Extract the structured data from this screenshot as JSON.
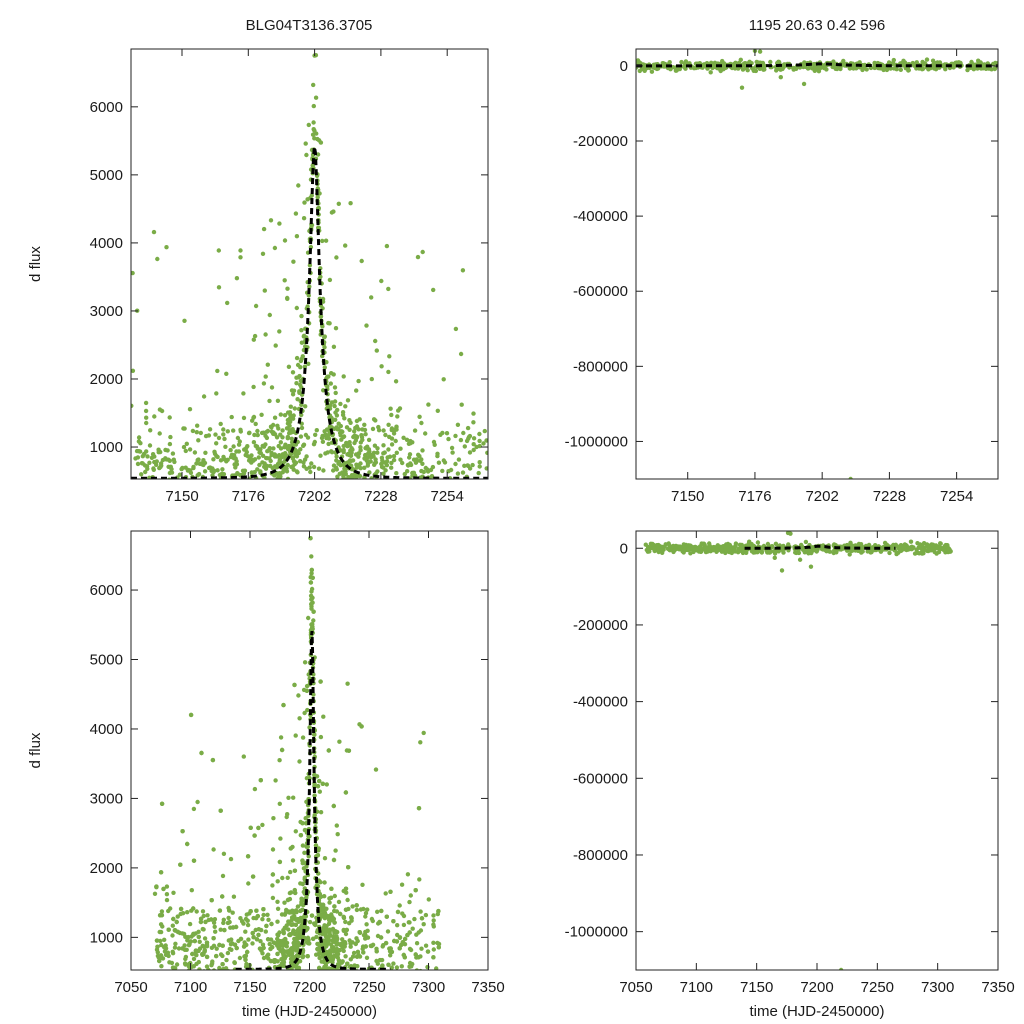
{
  "figure": {
    "title_left": "BLG04T3136.3705",
    "title_right": "1195  20.63  0.42  596",
    "point_color": "#7aac47",
    "model_color": "#000000"
  },
  "chart_data": [
    {
      "id": "top_left",
      "type": "scatter",
      "xlabel": "",
      "ylabel": "d flux",
      "xlim": [
        7130,
        7270
      ],
      "ylim": [
        530,
        6850
      ],
      "xticks": [
        7150,
        7176,
        7202,
        7228,
        7254
      ],
      "yticks": [
        1000,
        2000,
        3000,
        4000,
        5000,
        6000
      ],
      "series": [
        {
          "name": "observations",
          "kind": "scatter-cloud",
          "distribution": {
            "peak_x": 7202,
            "width": 9,
            "baseline": 600,
            "amplitude": 5200,
            "x_range": [
              7130,
              7270
            ],
            "count": 1300,
            "scatter": 450
          }
        },
        {
          "name": "model",
          "kind": "line-dashed",
          "model": {
            "t0": 7202,
            "tE": 9,
            "baseline": 540,
            "peak": 5430
          }
        }
      ]
    },
    {
      "id": "top_right",
      "type": "scatter",
      "xlabel": "",
      "ylabel": "",
      "xlim": [
        7130,
        7270
      ],
      "ylim": [
        -1100000,
        45000
      ],
      "xticks": [
        7150,
        7176,
        7202,
        7228,
        7254
      ],
      "yticks": [
        0,
        -200000,
        -400000,
        -600000,
        -800000,
        -1000000
      ],
      "yticklabels": [
        "0",
        "-200000",
        "-400000",
        "-600000",
        "-800000",
        "-1000000"
      ],
      "series": [
        {
          "name": "observations",
          "kind": "scatter-band",
          "distribution": {
            "x_range": [
              7130,
              7270
            ],
            "center": 0,
            "spread": 6000,
            "count": 500
          }
        },
        {
          "name": "outliers",
          "kind": "scatter-points",
          "x": [
            7171,
            7176,
            7195,
            7178,
            7213,
            7186
          ],
          "y": [
            -58000,
            40000,
            -48000,
            38000,
            -1100000,
            -30000
          ]
        },
        {
          "name": "model",
          "kind": "line-dashed",
          "model": {
            "t0": 7202,
            "tE": 30,
            "baseline": 0,
            "peak": 5400
          }
        }
      ]
    },
    {
      "id": "bottom_left",
      "type": "scatter",
      "xlabel": "time (HJD-2450000)",
      "ylabel": "d flux",
      "xlim": [
        7050,
        7350
      ],
      "ylim": [
        530,
        6850
      ],
      "xticks": [
        7050,
        7100,
        7150,
        7200,
        7250,
        7300,
        7350
      ],
      "yticks": [
        1000,
        2000,
        3000,
        4000,
        5000,
        6000
      ],
      "series": [
        {
          "name": "observations",
          "kind": "scatter-cloud",
          "distribution": {
            "peak_x": 7202,
            "width": 8,
            "baseline": 700,
            "amplitude": 5300,
            "x_range": [
              7070,
              7310
            ],
            "count": 1900,
            "scatter": 500
          }
        },
        {
          "name": "model",
          "kind": "line-dashed",
          "model": {
            "t0": 7202,
            "tE": 8,
            "baseline": 540,
            "peak": 5430,
            "x_range": [
              7138,
              7268
            ]
          }
        }
      ]
    },
    {
      "id": "bottom_right",
      "type": "scatter",
      "xlabel": "time (HJD-2450000)",
      "ylabel": "",
      "xlim": [
        7050,
        7350
      ],
      "ylim": [
        -1100000,
        45000
      ],
      "xticks": [
        7050,
        7100,
        7150,
        7200,
        7250,
        7300,
        7350
      ],
      "yticks": [
        0,
        -200000,
        -400000,
        -600000,
        -800000,
        -1000000
      ],
      "yticklabels": [
        "0",
        "-200000",
        "-400000",
        "-600000",
        "-800000",
        "-1000000"
      ],
      "series": [
        {
          "name": "observations",
          "kind": "scatter-band",
          "distribution": {
            "x_range": [
              7058,
              7312
            ],
            "center": 0,
            "spread": 6000,
            "count": 600
          }
        },
        {
          "name": "outliers",
          "kind": "scatter-points",
          "x": [
            7171,
            7176,
            7195,
            7178,
            7220,
            7186,
            7165
          ],
          "y": [
            -58000,
            40000,
            -48000,
            38000,
            -1100000,
            -30000,
            -25000
          ]
        },
        {
          "name": "model",
          "kind": "line-dashed",
          "model": {
            "t0": 7202,
            "tE": 30,
            "baseline": 0,
            "peak": 5400,
            "x_range": [
              7140,
              7265
            ]
          }
        }
      ]
    }
  ]
}
